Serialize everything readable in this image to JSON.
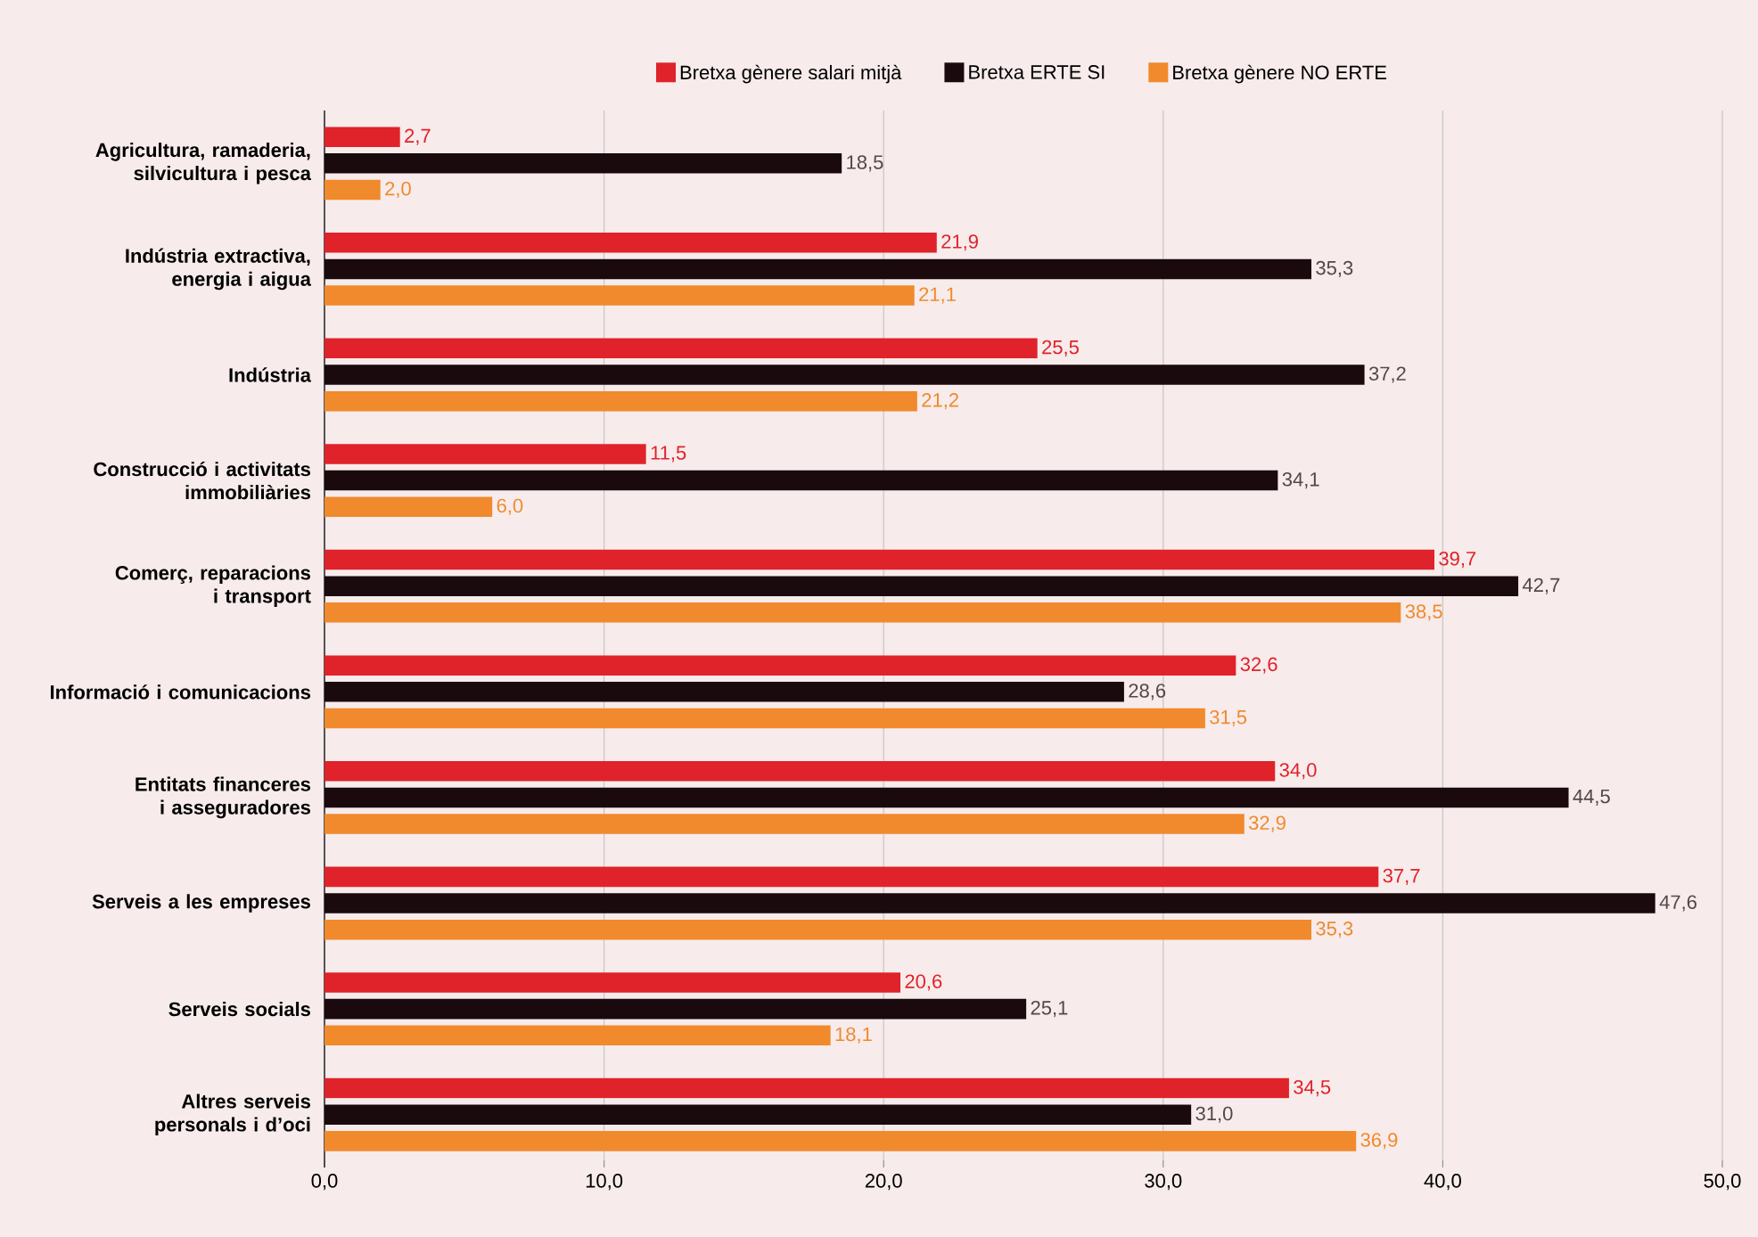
{
  "chart_data": {
    "type": "bar",
    "orientation": "horizontal",
    "categories": [
      "Agricultura, ramaderia, silvicultura i pesca",
      "Indústria extractiva, energia i aigua",
      "Indústria",
      "Construcció i activitats immobiliàries",
      "Comerç, reparacions i transport",
      "Informació i comunicacions",
      "Entitats financeres i asseguradores",
      "Serveis a les empreses",
      "Serveis socials",
      "Altres serveis personals i d’oci"
    ],
    "series": [
      {
        "name": "Bretxa gènere salari mitjà",
        "color": "#e0222a",
        "values": [
          2.7,
          21.9,
          25.5,
          11.5,
          39.7,
          32.6,
          34.0,
          37.7,
          20.6,
          34.5
        ],
        "value_labels": [
          "2,7",
          "21,9",
          "25,5",
          "11,5",
          "39,7",
          "32,6",
          "34,0",
          "37,7",
          "20,6",
          "34,5"
        ]
      },
      {
        "name": "Bretxa ERTE SI",
        "color": "#1a0a0e",
        "values": [
          18.5,
          35.3,
          37.2,
          34.1,
          42.7,
          28.6,
          44.5,
          47.6,
          25.1,
          31.0
        ],
        "value_labels": [
          "18,5",
          "35,3",
          "37,2",
          "34,1",
          "42,7",
          "28,6",
          "44,5",
          "47,6",
          "25,1",
          "31,0"
        ]
      },
      {
        "name": "Bretxa gènere NO ERTE",
        "color": "#f08a2c",
        "values": [
          2.0,
          21.1,
          21.2,
          6.0,
          38.5,
          31.5,
          32.9,
          35.3,
          18.1,
          36.9
        ],
        "value_labels": [
          "2,0",
          "21,1",
          "21,2",
          "6,0",
          "38,5",
          "31,5",
          "32,9",
          "35,3",
          "18,1",
          "36,9"
        ]
      }
    ],
    "xlim": [
      0,
      50
    ],
    "xticks": [
      {
        "value": 0,
        "label": "0,0"
      },
      {
        "value": 10,
        "label": "10,0"
      },
      {
        "value": 20,
        "label": "20,0"
      },
      {
        "value": 30,
        "label": "30,0"
      },
      {
        "value": 40,
        "label": "40,0"
      },
      {
        "value": 50,
        "label": "50,0"
      }
    ],
    "grid": "x",
    "legend": "top"
  }
}
